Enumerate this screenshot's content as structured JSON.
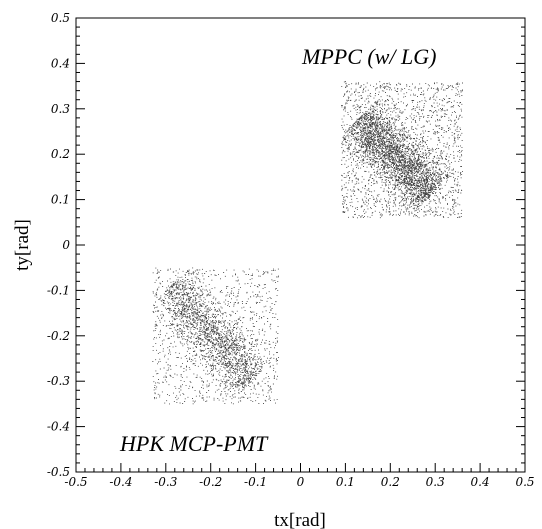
{
  "chart_data": {
    "type": "scatter",
    "title": "",
    "xlabel": "tx[rad]",
    "ylabel": "ty[rad]",
    "xlim": [
      -0.5,
      0.5
    ],
    "ylim": [
      -0.5,
      0.5
    ],
    "xticks": [
      "-0.5",
      "-0.4",
      "-0.3",
      "-0.2",
      "-0.1",
      "0",
      "0.1",
      "0.2",
      "0.3",
      "0.4",
      "0.5"
    ],
    "yticks": [
      "-0.5",
      "-0.4",
      "-0.3",
      "-0.2",
      "-0.1",
      "0",
      "0.1",
      "0.2",
      "0.3",
      "0.4",
      "0.5"
    ],
    "grid": false,
    "marker_color": "#000000",
    "annotations": [
      {
        "text": "MPPC (w/  LG)",
        "x": 0.005,
        "y": 0.44
      },
      {
        "text": "HPK MCP-PMT",
        "x": -0.455,
        "y": -0.46
      }
    ],
    "series": [
      {
        "points": 7000,
        "x_range": [
          0.09,
          0.36
        ],
        "y_range": [
          0.06,
          0.36
        ],
        "center": [
          0.22,
          0.21
        ],
        "dense_band": [
          [
            0.13,
            0.28
          ],
          [
            0.29,
            0.11
          ]
        ]
      },
      {
        "points": 3000,
        "x_range": [
          -0.33,
          -0.05
        ],
        "y_range": [
          -0.35,
          -0.05
        ],
        "center": [
          -0.2,
          -0.2
        ],
        "dense_band": [
          [
            -0.29,
            -0.09
          ],
          [
            -0.11,
            -0.3
          ]
        ]
      }
    ]
  }
}
